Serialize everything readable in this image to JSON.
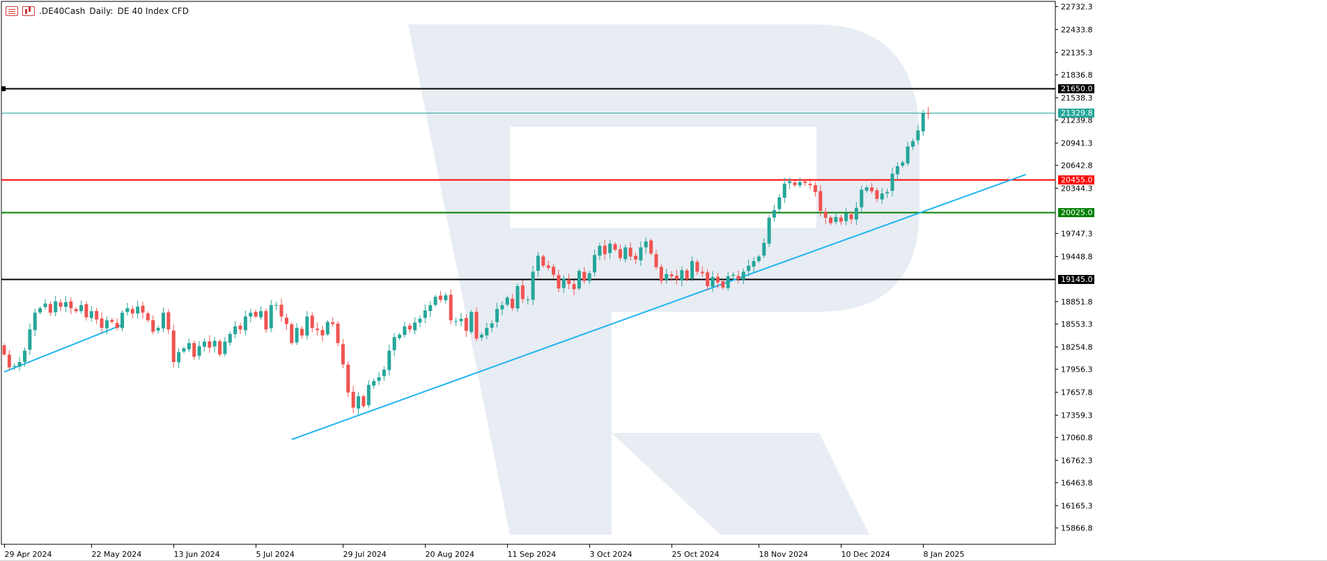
{
  "header": {
    "symbol": ".DE40Cash",
    "timeframe": "Daily:",
    "description": "DE 40 Index CFD"
  },
  "icons": [
    "list-icon",
    "bars-icon"
  ],
  "colors": {
    "bull": "#26a69a",
    "bear": "#ef5350",
    "trendline": "#1eb4f0",
    "resistance": "#ff0000",
    "support": "#008000",
    "level_black": "#000000",
    "current_price": "#26a69a",
    "watermark": "#e8ecf3"
  },
  "chart_data": {
    "type": "candlestick",
    "y_range": [
      15650,
      22800
    ],
    "y_ticks": [
      15866.8,
      16165.3,
      16463.8,
      16762.3,
      17060.8,
      17359.3,
      17657.8,
      17956.3,
      18254.8,
      18553.3,
      18851.8,
      19145.0,
      19448.8,
      19747.3,
      20025.0,
      20344.3,
      20455.0,
      20642.8,
      20941.3,
      21239.8,
      21329.8,
      21538.3,
      21650.0,
      21836.8,
      22135.3,
      22433.8,
      22732.3
    ],
    "y_tick_labels": [
      "15866.8",
      "16165.3",
      "16463.8",
      "16762.3",
      "17060.8",
      "17359.3",
      "17657.8",
      "17956.3",
      "18254.8",
      "18553.3",
      "18851.8",
      "19145.0",
      "19448.8",
      "19747.3",
      "20025.0",
      "20344.3",
      "20455.0",
      "20642.8",
      "20941.3",
      "21239.8",
      "21329.8",
      "21538.3",
      "21650.0",
      "21836.8",
      "22135.3",
      "22433.8",
      "22732.3"
    ],
    "x_labels": [
      {
        "label": "29 Apr 2024",
        "index": 0
      },
      {
        "label": "22 May 2024",
        "index": 17
      },
      {
        "label": "13 Jun 2024",
        "index": 33
      },
      {
        "label": "5 Jul 2024",
        "index": 49
      },
      {
        "label": "29 Jul 2024",
        "index": 66
      },
      {
        "label": "20 Aug 2024",
        "index": 82
      },
      {
        "label": "11 Sep 2024",
        "index": 98
      },
      {
        "label": "3 Oct 2024",
        "index": 114
      },
      {
        "label": "25 Oct 2024",
        "index": 130
      },
      {
        "label": "18 Nov 2024",
        "index": 147
      },
      {
        "label": "10 Dec 2024",
        "index": 163
      },
      {
        "label": "8 Jan 2025",
        "index": 179
      }
    ],
    "closes": [
      18150,
      17980,
      18000,
      18050,
      18200,
      18480,
      18700,
      18760,
      18820,
      18700,
      18850,
      18780,
      18840,
      18760,
      18720,
      18800,
      18640,
      18720,
      18610,
      18500,
      18600,
      18580,
      18500,
      18700,
      18760,
      18690,
      18780,
      18700,
      18600,
      18450,
      18500,
      18700,
      18480,
      18050,
      18180,
      18230,
      18300,
      18120,
      18260,
      18320,
      18240,
      18330,
      18150,
      18320,
      18420,
      18520,
      18480,
      18650,
      18700,
      18650,
      18720,
      18480,
      18800,
      18800,
      18650,
      18550,
      18300,
      18500,
      18400,
      18650,
      18500,
      18470,
      18400,
      18580,
      18550,
      18300,
      18020,
      17650,
      17450,
      17600,
      17470,
      17750,
      17800,
      17850,
      17950,
      18200,
      18380,
      18410,
      18520,
      18480,
      18570,
      18620,
      18730,
      18800,
      18910,
      18870,
      18930,
      18600,
      18590,
      18620,
      18460,
      18710,
      18360,
      18410,
      18500,
      18560,
      18750,
      18800,
      18900,
      18760,
      19050,
      18880,
      18870,
      19240,
      19450,
      19320,
      19290,
      19200,
      19020,
      19150,
      19080,
      19010,
      19250,
      19120,
      19220,
      19460,
      19580,
      19470,
      19610,
      19530,
      19420,
      19560,
      19440,
      19400,
      19560,
      19640,
      19480,
      19300,
      19120,
      19210,
      19180,
      19140,
      19260,
      19140,
      19380,
      19240,
      19220,
      19050,
      19170,
      19100,
      19030,
      19180,
      19200,
      19140,
      19240,
      19320,
      19380,
      19440,
      19620,
      19950,
      20050,
      20220,
      20400,
      20430,
      20380,
      20420,
      20410,
      20380,
      20290,
      20040,
      19950,
      19880,
      19960,
      19900,
      20010,
      19930,
      20080,
      20320,
      20350,
      20300,
      20200,
      20270,
      20290,
      20530,
      20630,
      20680,
      20890,
      20960,
      21100,
      21330,
      21320
    ],
    "ohlc": [],
    "horizontal_levels": [
      {
        "value": 21650.0,
        "label": "21650.0",
        "color": "#000000"
      },
      {
        "value": 21329.8,
        "label": "21329.8",
        "color": "#26a69a"
      },
      {
        "value": 20455.0,
        "label": "20455.0",
        "color": "#ff0000"
      },
      {
        "value": 20025.0,
        "label": "20025.0",
        "color": "#008000"
      },
      {
        "value": 19145.0,
        "label": "19145.0",
        "color": "#000000"
      }
    ],
    "trendlines": [
      {
        "from": {
          "index": 0,
          "value": 17920
        },
        "to": {
          "index": 23,
          "value": 18540
        }
      },
      {
        "from": {
          "index": 56,
          "value": 17030
        },
        "to": {
          "index": 199,
          "value": 20520
        }
      }
    ],
    "grid": false,
    "legend": "none"
  }
}
